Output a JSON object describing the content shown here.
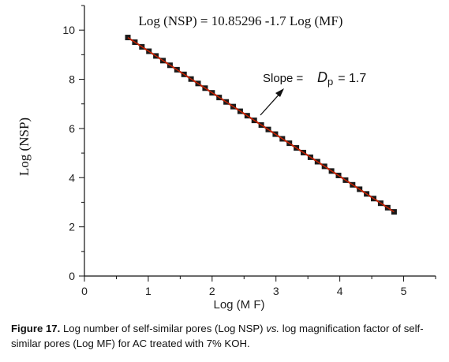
{
  "chart_data": {
    "type": "scatter",
    "xlabel": "Log (M F)",
    "ylabel": "Log (NSP)",
    "xlim": [
      0,
      5.5
    ],
    "ylim": [
      0,
      11
    ],
    "xticks": [
      "0",
      "1",
      "2",
      "3",
      "4",
      "5"
    ],
    "yticks": [
      "0",
      "2",
      "4",
      "6",
      "8",
      "10"
    ],
    "grid": false,
    "equation": "Log (NSP) = 10.85296 -1.7 Log (MF)",
    "slope_label": "Slope =",
    "slope_symbol": "D",
    "slope_subscript": "p",
    "slope_value": "= 1.7",
    "fit": {
      "intercept": 10.85296,
      "slope": -1.7,
      "x_range": [
        0.68,
        4.85
      ]
    },
    "series": [
      {
        "marker_color": "#1a1a1a",
        "line_color": "#cc2200",
        "x": [
          0.68,
          0.79,
          0.9,
          1.01,
          1.12,
          1.23,
          1.34,
          1.45,
          1.56,
          1.67,
          1.78,
          1.89,
          2.0,
          2.11,
          2.22,
          2.33,
          2.44,
          2.55,
          2.66,
          2.77,
          2.88,
          2.99,
          3.1,
          3.21,
          3.32,
          3.43,
          3.54,
          3.65,
          3.76,
          3.87,
          3.98,
          4.09,
          4.2,
          4.31,
          4.42,
          4.53,
          4.64,
          4.75,
          4.85
        ],
        "y": [
          9.7,
          9.51,
          9.32,
          9.14,
          8.95,
          8.76,
          8.57,
          8.39,
          8.2,
          8.01,
          7.83,
          7.64,
          7.45,
          7.26,
          7.08,
          6.89,
          6.7,
          6.52,
          6.33,
          6.14,
          5.96,
          5.77,
          5.58,
          5.4,
          5.21,
          5.02,
          4.83,
          4.65,
          4.46,
          4.27,
          4.09,
          3.9,
          3.71,
          3.53,
          3.34,
          3.15,
          2.96,
          2.78,
          2.61
        ]
      }
    ]
  },
  "caption": {
    "label": "Figure 17.",
    "part1": " Log number of self-similar pores (Log NSP) ",
    "vs": "vs.",
    "part2": " log magnification factor of self-similar pores (Log MF) for AC treated with 7% KOH."
  }
}
